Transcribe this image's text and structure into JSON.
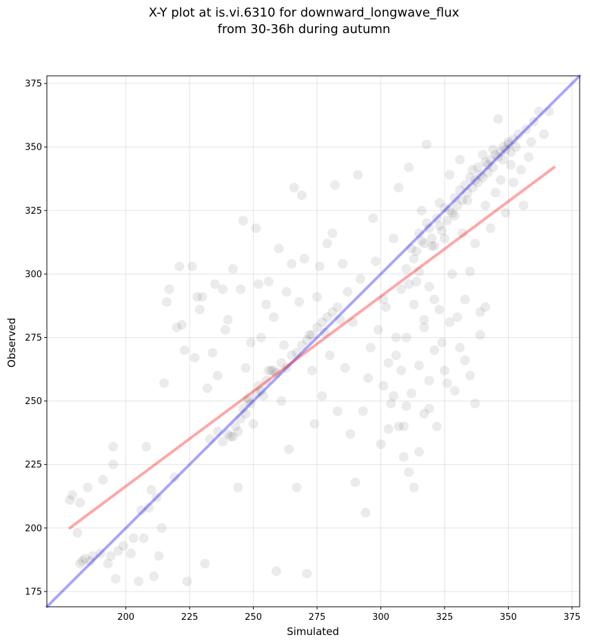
{
  "chart_data": {
    "type": "scatter",
    "title": "X-Y plot at is.vi.6310 for downward_longwave_flux",
    "subtitle": "from 30-36h during autumn",
    "xlabel": "Simulated",
    "ylabel": "Observed",
    "xlim": [
      169,
      378
    ],
    "ylim": [
      169,
      378
    ],
    "xticks": [
      200,
      225,
      250,
      275,
      300,
      325,
      350,
      375
    ],
    "yticks": [
      175,
      200,
      225,
      250,
      275,
      300,
      325,
      350,
      375
    ],
    "grid": true,
    "point_color": "#000000",
    "point_opacity": 0.08,
    "identity_line": {
      "x": [
        169,
        378
      ],
      "y": [
        169,
        378
      ],
      "color": "#0000ff"
    },
    "regression_line": {
      "x": [
        178,
        368
      ],
      "y": [
        200,
        342
      ],
      "color": "#ff0000"
    },
    "series": [
      {
        "points": [
          [
            178,
            211
          ],
          [
            179,
            213
          ],
          [
            181,
            198
          ],
          [
            182,
            210
          ],
          [
            182,
            186
          ],
          [
            183,
            187
          ],
          [
            184,
            188
          ],
          [
            185,
            216
          ],
          [
            186,
            187
          ],
          [
            187,
            189
          ],
          [
            190,
            190
          ],
          [
            191,
            219
          ],
          [
            193,
            186
          ],
          [
            194,
            189
          ],
          [
            195,
            232
          ],
          [
            195,
            225
          ],
          [
            196,
            180
          ],
          [
            197,
            191
          ],
          [
            199,
            193
          ],
          [
            202,
            190
          ],
          [
            203,
            196
          ],
          [
            205,
            179
          ],
          [
            206,
            207
          ],
          [
            207,
            196
          ],
          [
            208,
            232
          ],
          [
            209,
            208
          ],
          [
            210,
            215
          ],
          [
            211,
            181
          ],
          [
            212,
            212
          ],
          [
            213,
            189
          ],
          [
            214,
            200
          ],
          [
            215,
            257
          ],
          [
            216,
            289
          ],
          [
            217,
            294
          ],
          [
            219,
            220
          ],
          [
            220,
            279
          ],
          [
            221,
            303
          ],
          [
            222,
            280
          ],
          [
            223,
            270
          ],
          [
            224,
            179
          ],
          [
            226,
            303
          ],
          [
            227,
            267
          ],
          [
            228,
            291
          ],
          [
            229,
            286
          ],
          [
            230,
            291
          ],
          [
            231,
            186
          ],
          [
            232,
            255
          ],
          [
            233,
            235
          ],
          [
            234,
            269
          ],
          [
            235,
            296
          ],
          [
            236,
            260
          ],
          [
            238,
            294
          ],
          [
            239,
            278
          ],
          [
            240,
            282
          ],
          [
            242,
            302
          ],
          [
            243,
            240
          ],
          [
            244,
            216
          ],
          [
            245,
            294
          ],
          [
            246,
            321
          ],
          [
            247,
            263
          ],
          [
            248,
            250
          ],
          [
            249,
            273
          ],
          [
            250,
            241
          ],
          [
            251,
            318
          ],
          [
            252,
            296
          ],
          [
            253,
            275
          ],
          [
            254,
            252
          ],
          [
            255,
            288
          ],
          [
            256,
            297
          ],
          [
            257,
            262
          ],
          [
            258,
            283
          ],
          [
            259,
            183
          ],
          [
            260,
            310
          ],
          [
            261,
            250
          ],
          [
            262,
            272
          ],
          [
            263,
            293
          ],
          [
            264,
            231
          ],
          [
            265,
            304
          ],
          [
            266,
            334
          ],
          [
            267,
            216
          ],
          [
            268,
            289
          ],
          [
            269,
            331
          ],
          [
            270,
            306
          ],
          [
            271,
            182
          ],
          [
            272,
            276
          ],
          [
            273,
            262
          ],
          [
            274,
            241
          ],
          [
            275,
            291
          ],
          [
            276,
            303
          ],
          [
            277,
            252
          ],
          [
            278,
            277
          ],
          [
            279,
            312
          ],
          [
            280,
            268
          ],
          [
            281,
            316
          ],
          [
            282,
            335
          ],
          [
            283,
            246
          ],
          [
            284,
            282
          ],
          [
            285,
            304
          ],
          [
            286,
            263
          ],
          [
            287,
            293
          ],
          [
            288,
            237
          ],
          [
            289,
            281
          ],
          [
            290,
            218
          ],
          [
            291,
            339
          ],
          [
            292,
            298
          ],
          [
            293,
            246
          ],
          [
            294,
            206
          ],
          [
            295,
            259
          ],
          [
            296,
            271
          ],
          [
            297,
            322
          ],
          [
            298,
            305
          ],
          [
            299,
            278
          ],
          [
            300,
            233
          ],
          [
            301,
            290
          ],
          [
            302,
            287
          ],
          [
            303,
            239
          ],
          [
            304,
            249
          ],
          [
            305,
            314
          ],
          [
            306,
            268
          ],
          [
            307,
            334
          ],
          [
            308,
            294
          ],
          [
            309,
            240
          ],
          [
            310,
            275
          ],
          [
            311,
            342
          ],
          [
            312,
            253
          ],
          [
            313,
            306
          ],
          [
            314,
            297
          ],
          [
            315,
            264
          ],
          [
            316,
            325
          ],
          [
            317,
            282
          ],
          [
            318,
            351
          ],
          [
            319,
            247
          ],
          [
            320,
            311
          ],
          [
            321,
            290
          ],
          [
            322,
            240
          ],
          [
            323,
            328
          ],
          [
            324,
            273
          ],
          [
            325,
            314
          ],
          [
            326,
            257
          ],
          [
            327,
            339
          ],
          [
            328,
            300
          ],
          [
            329,
            323
          ],
          [
            330,
            283
          ],
          [
            331,
            345
          ],
          [
            332,
            316
          ],
          [
            333,
            266
          ],
          [
            334,
            329
          ],
          [
            335,
            301
          ],
          [
            336,
            341
          ],
          [
            337,
            312
          ],
          [
            338,
            336
          ],
          [
            339,
            285
          ],
          [
            340,
            347
          ],
          [
            341,
            327
          ],
          [
            342,
            340
          ],
          [
            343,
            318
          ],
          [
            344,
            349
          ],
          [
            345,
            332
          ],
          [
            346,
            361
          ],
          [
            347,
            337
          ],
          [
            348,
            345
          ],
          [
            349,
            324
          ],
          [
            350,
            352
          ],
          [
            351,
            343
          ],
          [
            352,
            336
          ],
          [
            353,
            350
          ],
          [
            354,
            355
          ],
          [
            355,
            341
          ],
          [
            356,
            327
          ],
          [
            357,
            357
          ],
          [
            358,
            346
          ],
          [
            359,
            352
          ],
          [
            360,
            360
          ],
          [
            362,
            364
          ],
          [
            364,
            355
          ],
          [
            366,
            364
          ],
          [
            236,
            238
          ],
          [
            238,
            234
          ],
          [
            240,
            237
          ],
          [
            241,
            236
          ],
          [
            242,
            236
          ],
          [
            244,
            238
          ],
          [
            245,
            243
          ],
          [
            246,
            247
          ],
          [
            247,
            245
          ],
          [
            248,
            251
          ],
          [
            249,
            249
          ],
          [
            251,
            253
          ],
          [
            252,
            256
          ],
          [
            253,
            254
          ],
          [
            255,
            258
          ],
          [
            256,
            262
          ],
          [
            258,
            262
          ],
          [
            259,
            261
          ],
          [
            261,
            265
          ],
          [
            263,
            263
          ],
          [
            265,
            268
          ],
          [
            267,
            269
          ],
          [
            269,
            272
          ],
          [
            271,
            274
          ],
          [
            273,
            276
          ],
          [
            275,
            279
          ],
          [
            277,
            281
          ],
          [
            279,
            283
          ],
          [
            281,
            285
          ],
          [
            283,
            287
          ],
          [
            312,
            310
          ],
          [
            314,
            309
          ],
          [
            315,
            316
          ],
          [
            316,
            313
          ],
          [
            317,
            312
          ],
          [
            318,
            320
          ],
          [
            319,
            318
          ],
          [
            320,
            314
          ],
          [
            321,
            311
          ],
          [
            322,
            322
          ],
          [
            323,
            319
          ],
          [
            324,
            317
          ],
          [
            325,
            326
          ],
          [
            326,
            321
          ],
          [
            327,
            325
          ],
          [
            328,
            324
          ],
          [
            329,
            330
          ],
          [
            330,
            327
          ],
          [
            331,
            333
          ],
          [
            332,
            329
          ],
          [
            333,
            335
          ],
          [
            334,
            332
          ],
          [
            335,
            338
          ],
          [
            336,
            334
          ],
          [
            337,
            337
          ],
          [
            338,
            342
          ],
          [
            339,
            339
          ],
          [
            340,
            338
          ],
          [
            341,
            344
          ],
          [
            342,
            343
          ],
          [
            343,
            345
          ],
          [
            344,
            342
          ],
          [
            345,
            347
          ],
          [
            346,
            346
          ],
          [
            347,
            348
          ],
          [
            348,
            350
          ],
          [
            349,
            349
          ],
          [
            350,
            351
          ],
          [
            351,
            348
          ],
          [
            352,
            353
          ],
          [
            310,
            302
          ],
          [
            311,
            296
          ],
          [
            313,
            288
          ],
          [
            315,
            301
          ],
          [
            317,
            279
          ],
          [
            319,
            295
          ],
          [
            321,
            270
          ],
          [
            323,
            286
          ],
          [
            325,
            262
          ],
          [
            327,
            281
          ],
          [
            329,
            254
          ],
          [
            331,
            271
          ],
          [
            333,
            290
          ],
          [
            335,
            260
          ],
          [
            337,
            249
          ],
          [
            339,
            276
          ],
          [
            341,
            287
          ],
          [
            306,
            275
          ],
          [
            308,
            262
          ],
          [
            310,
            248
          ],
          [
            303,
            265
          ],
          [
            305,
            252
          ],
          [
            307,
            240
          ],
          [
            309,
            228
          ],
          [
            311,
            222
          ],
          [
            313,
            216
          ],
          [
            315,
            230
          ],
          [
            317,
            245
          ],
          [
            319,
            258
          ],
          [
            301,
            256
          ]
        ]
      }
    ]
  }
}
